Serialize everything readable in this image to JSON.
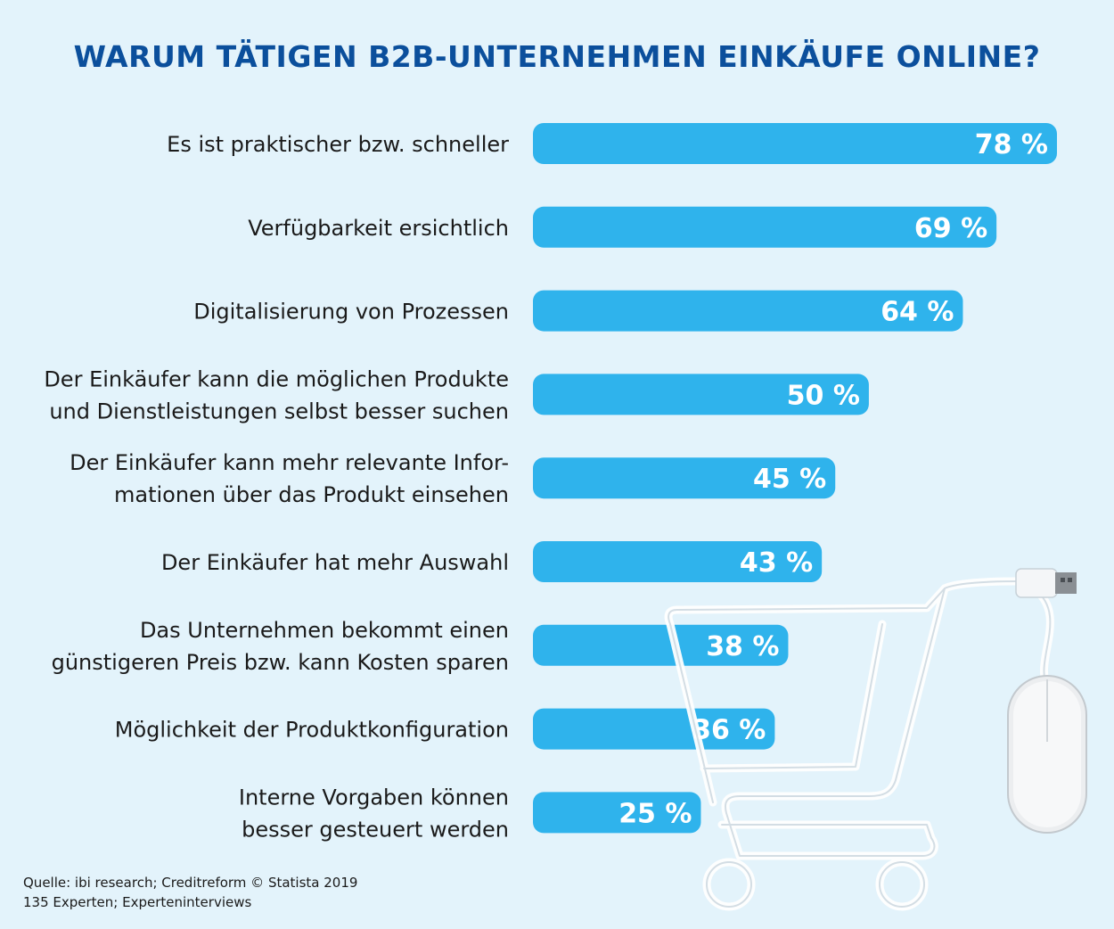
{
  "chart_data": {
    "type": "bar",
    "orientation": "horizontal",
    "title": "WARUM TÄTIGEN B2B-UNTERNEHMEN EINKÄUFE ONLINE?",
    "categories": [
      [
        "Es ist praktischer bzw. schneller"
      ],
      [
        "Verfügbarkeit ersichtlich"
      ],
      [
        "Digitalisierung von Prozessen"
      ],
      [
        "Der Einkäufer kann die möglichen Produkte",
        "und Dienstleistungen selbst besser suchen"
      ],
      [
        "Der Einkäufer kann mehr relevante Infor-",
        "mationen über das Produkt einsehen"
      ],
      [
        "Der Einkäufer hat mehr Auswahl"
      ],
      [
        "Das Unternehmen bekommt einen",
        "günstigeren Preis bzw. kann Kosten sparen"
      ],
      [
        "Möglichkeit der Produktkonfiguration"
      ],
      [
        "Interne Vorgaben können",
        "besser gesteuert werden"
      ]
    ],
    "values": [
      78,
      69,
      64,
      50,
      45,
      43,
      38,
      36,
      25
    ],
    "value_labels": [
      "78 %",
      "69 %",
      "64 %",
      "50 %",
      "45 %",
      "43 %",
      "38 %",
      "36 %",
      "25 %"
    ],
    "unit": "%",
    "xlim": [
      0,
      78
    ],
    "grid": false,
    "bar_color": "#2fb3ec"
  },
  "colors": {
    "background": "#e3f3fb",
    "title": "#0b4f9c",
    "bar": "#2fb3ec"
  },
  "decoration": {
    "illustration": "shopping-cart-cable-with-usb-plug-and-mouse"
  },
  "footer": {
    "source": "Quelle: ibi research; Creditreform © Statista 2019",
    "sample": "135 Experten; Experteninterviews"
  }
}
